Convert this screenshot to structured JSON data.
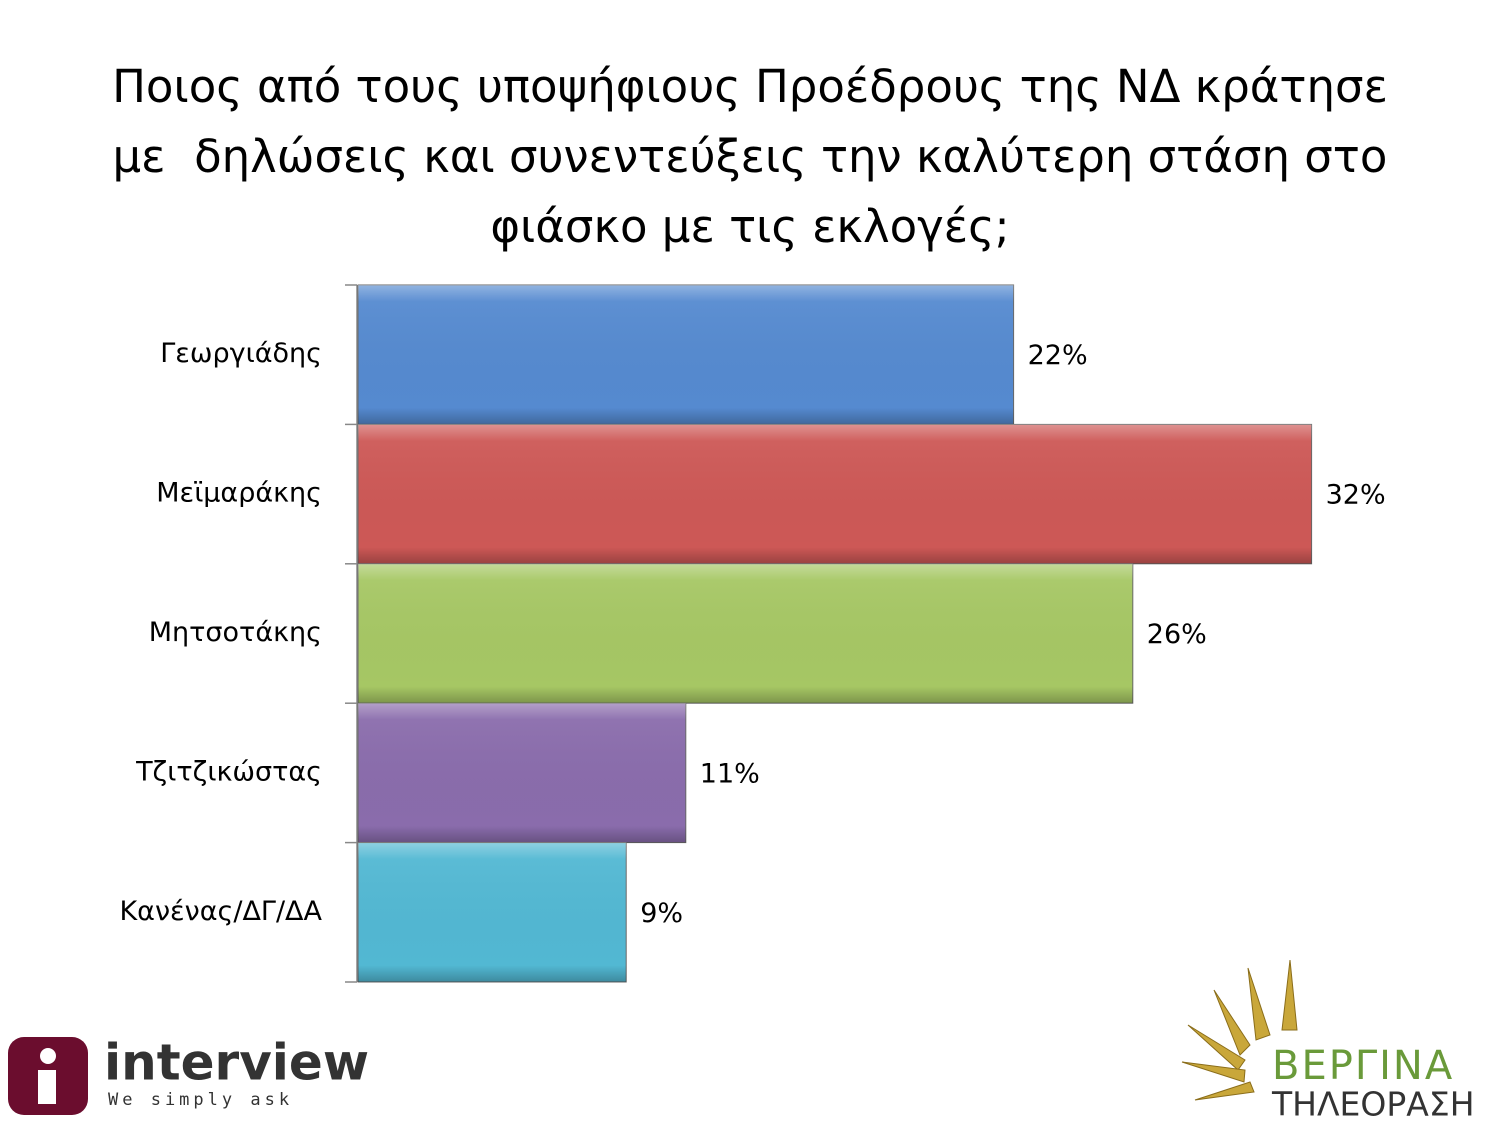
{
  "chart_data": {
    "type": "bar",
    "orientation": "horizontal",
    "title": [
      "Ποιος από τους υποψήφιους Προέδρους της ΝΔ κράτησε",
      "με  δηλώσεις και συνεντεύξεις την καλύτερη στάση στο",
      "φιάσκο με τις εκλογές;"
    ],
    "categories": [
      "Γεωργιάδης",
      "Μεϊμαράκης",
      "Μητσοτάκης",
      "Τζιτζικώστας",
      "Κανένας/ΔΓ/ΔΑ"
    ],
    "values": [
      22,
      32,
      26,
      11,
      9
    ],
    "value_labels": [
      "22%",
      "32%",
      "26%",
      "11%",
      "9%"
    ],
    "colors": [
      "#558ad0",
      "#cd5856",
      "#a6c764",
      "#8a6cac",
      "#52b8d3"
    ],
    "xlim": [
      0,
      35
    ]
  },
  "logos": {
    "left_name": "interview",
    "left_tagline": "We simply ask",
    "right_name": "ΒΕΡΓΙΝΑ",
    "right_sub": "ΤΗΛΕΟΡΑΣΗ"
  }
}
